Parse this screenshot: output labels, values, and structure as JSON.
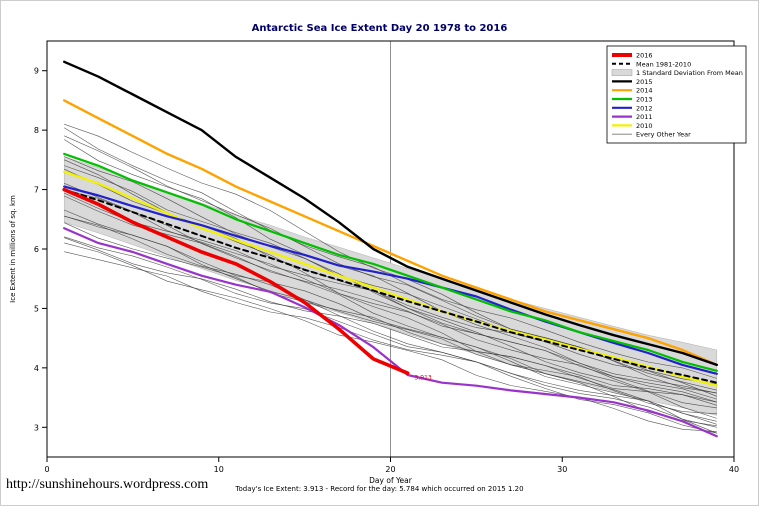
{
  "page": {
    "title": "Antarctic Sea Ice Extent Day 20 1978 to 2016",
    "footer_caption": "Today's Ice Extent: 3.913  - Record for the day: 5.784 which occurred on 2015 1.20",
    "url": "http://sunshinehours.wordpress.com"
  },
  "chart_data": {
    "type": "line",
    "title": "Antarctic Sea Ice Extent Day 20 1978 to 2016",
    "xlabel": "Day of Year",
    "ylabel": "Ice Extent in millions of sq. km",
    "xlim": [
      0,
      40
    ],
    "ylim": [
      2.5,
      9.5
    ],
    "xticks": [
      0,
      10,
      20,
      30,
      40
    ],
    "yticks": [
      3,
      4,
      5,
      6,
      7,
      8,
      9
    ],
    "vline_x": 20,
    "x": [
      1,
      3,
      5,
      7,
      9,
      11,
      13,
      15,
      17,
      19,
      21,
      23,
      25,
      27,
      29,
      31,
      33,
      35,
      37,
      39
    ],
    "band": {
      "label": "1 Standard Deviation From Mean",
      "color": "#d9d9d9",
      "mean_series": "Mean 1981-2010",
      "std": 0.55
    },
    "series": [
      {
        "name": "2010",
        "color": "#f2f200",
        "width": 2.2,
        "values": [
          7.3,
          7.1,
          6.85,
          6.6,
          6.35,
          6.15,
          5.95,
          5.75,
          5.55,
          5.35,
          5.15,
          4.95,
          4.78,
          4.62,
          4.48,
          4.32,
          4.18,
          4.02,
          3.85,
          3.7
        ]
      },
      {
        "name": "2011",
        "color": "#9933cc",
        "width": 2.2,
        "values": [
          6.35,
          6.1,
          5.95,
          5.75,
          5.55,
          5.4,
          5.28,
          5.02,
          4.72,
          4.35,
          3.88,
          3.75,
          3.7,
          3.62,
          3.56,
          3.5,
          3.42,
          3.28,
          3.1,
          2.85
        ]
      },
      {
        "name": "2012",
        "color": "#2222cc",
        "width": 2.2,
        "values": [
          7.05,
          6.9,
          6.72,
          6.55,
          6.4,
          6.22,
          6.05,
          5.9,
          5.72,
          5.62,
          5.5,
          5.35,
          5.2,
          4.98,
          4.78,
          4.6,
          4.42,
          4.25,
          4.05,
          3.9
        ]
      },
      {
        "name": "2013",
        "color": "#00c000",
        "width": 2.2,
        "values": [
          7.6,
          7.4,
          7.15,
          6.95,
          6.75,
          6.5,
          6.3,
          6.1,
          5.9,
          5.75,
          5.55,
          5.35,
          5.15,
          4.95,
          4.8,
          4.6,
          4.45,
          4.3,
          4.1,
          3.95
        ]
      },
      {
        "name": "2014",
        "color": "#ffa200",
        "width": 2.4,
        "values": [
          8.5,
          8.2,
          7.9,
          7.6,
          7.35,
          7.05,
          6.8,
          6.55,
          6.3,
          6.05,
          5.8,
          5.55,
          5.35,
          5.15,
          4.95,
          4.8,
          4.65,
          4.5,
          4.3,
          4.05
        ]
      },
      {
        "name": "2015",
        "color": "#000000",
        "width": 2.4,
        "values": [
          9.15,
          8.9,
          8.6,
          8.3,
          8.0,
          7.55,
          7.2,
          6.85,
          6.45,
          6.0,
          5.7,
          5.5,
          5.3,
          5.1,
          4.9,
          4.72,
          4.55,
          4.4,
          4.25,
          4.05
        ]
      },
      {
        "name": "Mean 1981-2010",
        "color": "#000000",
        "width": 2,
        "dash": "5,4",
        "values": [
          7.0,
          6.82,
          6.62,
          6.42,
          6.22,
          6.02,
          5.85,
          5.65,
          5.48,
          5.3,
          5.12,
          4.95,
          4.78,
          4.6,
          4.45,
          4.3,
          4.15,
          4.0,
          3.88,
          3.75
        ]
      },
      {
        "name": "2016",
        "color": "#ee0000",
        "width": 3.6,
        "x": [
          1,
          3,
          5,
          7,
          9,
          11,
          13,
          15,
          17,
          19,
          21
        ],
        "values": [
          7.0,
          6.75,
          6.45,
          6.2,
          5.95,
          5.75,
          5.45,
          5.1,
          4.65,
          4.15,
          3.91
        ]
      }
    ],
    "background_series": {
      "label": "Every Other Year",
      "color": "#3a3a3a",
      "width": 0.6,
      "lines": [
        [
          8.1,
          7.85,
          7.6,
          7.4,
          7.15,
          6.9,
          6.6,
          6.3,
          6.0,
          5.7,
          5.45,
          5.2,
          4.95,
          4.7,
          4.5,
          4.3,
          4.1,
          3.95,
          3.8,
          3.6
        ],
        [
          7.8,
          7.5,
          7.3,
          7.05,
          6.8,
          6.5,
          6.2,
          5.95,
          5.7,
          5.5,
          5.25,
          5.0,
          4.75,
          4.5,
          4.3,
          4.1,
          3.9,
          3.7,
          3.55,
          3.4
        ],
        [
          7.6,
          7.35,
          7.1,
          6.8,
          6.55,
          6.3,
          6.05,
          5.8,
          5.55,
          5.3,
          5.05,
          4.8,
          4.55,
          4.35,
          4.15,
          3.95,
          3.75,
          3.55,
          3.35,
          3.2
        ],
        [
          7.5,
          7.2,
          6.9,
          6.65,
          6.4,
          6.1,
          5.85,
          5.6,
          5.3,
          5.05,
          4.8,
          4.55,
          4.3,
          4.1,
          3.9,
          3.7,
          3.5,
          3.3,
          3.15,
          3.0
        ],
        [
          7.3,
          7.1,
          6.85,
          6.6,
          6.35,
          6.15,
          5.9,
          5.7,
          5.45,
          5.25,
          5.0,
          4.8,
          4.6,
          4.4,
          4.25,
          4.05,
          3.9,
          3.75,
          3.6,
          3.45
        ],
        [
          7.15,
          6.9,
          6.6,
          6.35,
          6.1,
          5.9,
          5.65,
          5.4,
          5.2,
          4.95,
          4.75,
          4.5,
          4.3,
          4.1,
          3.9,
          3.75,
          3.55,
          3.4,
          3.25,
          3.1
        ],
        [
          7.0,
          6.8,
          6.6,
          6.35,
          6.15,
          5.9,
          5.7,
          5.5,
          5.3,
          5.1,
          4.9,
          4.7,
          4.5,
          4.35,
          4.15,
          4.0,
          3.8,
          3.65,
          3.45,
          3.3
        ],
        [
          6.85,
          6.65,
          6.45,
          6.25,
          6.05,
          5.85,
          5.65,
          5.5,
          5.3,
          5.1,
          4.95,
          4.75,
          4.6,
          4.4,
          4.25,
          4.1,
          3.95,
          3.8,
          3.65,
          3.55
        ],
        [
          6.7,
          6.45,
          6.2,
          6.0,
          5.75,
          5.55,
          5.3,
          5.1,
          4.85,
          4.65,
          4.45,
          4.25,
          4.05,
          3.85,
          3.7,
          3.5,
          3.35,
          3.2,
          3.05,
          2.95
        ],
        [
          6.55,
          6.35,
          6.15,
          5.95,
          5.75,
          5.55,
          5.35,
          5.15,
          5.0,
          4.8,
          4.6,
          4.45,
          4.25,
          4.1,
          3.95,
          3.8,
          3.6,
          3.45,
          3.3,
          3.2
        ],
        [
          6.4,
          6.2,
          6.05,
          5.85,
          5.65,
          5.5,
          5.3,
          5.15,
          4.95,
          4.8,
          4.6,
          4.45,
          4.3,
          4.15,
          4.0,
          3.85,
          3.7,
          3.6,
          3.5,
          3.4
        ],
        [
          6.25,
          6.05,
          5.85,
          5.65,
          5.5,
          5.3,
          5.1,
          4.95,
          4.75,
          4.6,
          4.4,
          4.25,
          4.05,
          3.9,
          3.75,
          3.6,
          3.45,
          3.3,
          3.15,
          3.05
        ],
        [
          6.1,
          5.9,
          5.7,
          5.5,
          5.35,
          5.15,
          4.95,
          4.8,
          4.6,
          4.45,
          4.25,
          4.1,
          3.9,
          3.75,
          3.6,
          3.45,
          3.3,
          3.15,
          3.0,
          2.9
        ],
        [
          8.0,
          7.7,
          7.45,
          7.15,
          6.9,
          6.6,
          6.35,
          6.1,
          5.85,
          5.65,
          5.4,
          5.2,
          5.0,
          4.8,
          4.6,
          4.45,
          4.3,
          4.1,
          3.95,
          3.8
        ],
        [
          6.0,
          5.85,
          5.65,
          5.5,
          5.3,
          5.15,
          4.95,
          4.8,
          4.65,
          4.5,
          4.35,
          4.2,
          4.05,
          3.9,
          3.8,
          3.65,
          3.5,
          3.4,
          3.25,
          3.15
        ],
        [
          7.4,
          7.15,
          6.95,
          6.7,
          6.5,
          6.25,
          6.05,
          5.85,
          5.6,
          5.4,
          5.2,
          5.0,
          4.85,
          4.65,
          4.5,
          4.3,
          4.15,
          4.0,
          3.85,
          3.7
        ],
        [
          6.9,
          6.7,
          6.5,
          6.3,
          6.1,
          5.95,
          5.75,
          5.6,
          5.4,
          5.25,
          5.05,
          4.9,
          4.7,
          4.55,
          4.4,
          4.25,
          4.1,
          3.95,
          3.7,
          3.5
        ],
        [
          6.6,
          6.4,
          6.2,
          6.0,
          5.8,
          5.6,
          5.45,
          5.25,
          5.05,
          4.85,
          4.7,
          4.5,
          4.3,
          4.15,
          3.95,
          3.8,
          3.6,
          3.4,
          3.15,
          2.95
        ],
        [
          7.9,
          7.6,
          7.35,
          7.1,
          6.85,
          6.55,
          6.3,
          6.05,
          5.8,
          5.55,
          5.35,
          5.1,
          4.9,
          4.7,
          4.5,
          4.3,
          4.1,
          3.9,
          3.7,
          3.55
        ],
        [
          6.15,
          6.0,
          5.8,
          5.6,
          5.45,
          5.3,
          5.15,
          5.0,
          4.85,
          4.7,
          4.55,
          4.4,
          4.3,
          4.15,
          4.0,
          3.9,
          3.75,
          3.65,
          3.5,
          3.35
        ]
      ]
    },
    "annotation": {
      "text": "3.913",
      "x": 21.4,
      "y": 3.8,
      "color": "#ee0000"
    },
    "legend": [
      {
        "label": "2016",
        "color": "#ee0000",
        "width": 4
      },
      {
        "label": "Mean 1981-2010",
        "color": "#000000",
        "width": 2,
        "dash": "4,3"
      },
      {
        "label": "1 Standard Deviation From Mean",
        "color": "#d9d9d9",
        "box": true
      },
      {
        "label": "2015",
        "color": "#000000",
        "width": 2.2
      },
      {
        "label": "2014",
        "color": "#ffa200",
        "width": 2.2
      },
      {
        "label": "2013",
        "color": "#00c000",
        "width": 2.2
      },
      {
        "label": "2012",
        "color": "#2222cc",
        "width": 2.2
      },
      {
        "label": "2011",
        "color": "#9933cc",
        "width": 2.2
      },
      {
        "label": "2010",
        "color": "#f2f200",
        "width": 2.2
      },
      {
        "label": "Every Other Year",
        "color": "#777777",
        "width": 0.8
      }
    ],
    "legend_position": "top-right",
    "grid": false
  }
}
